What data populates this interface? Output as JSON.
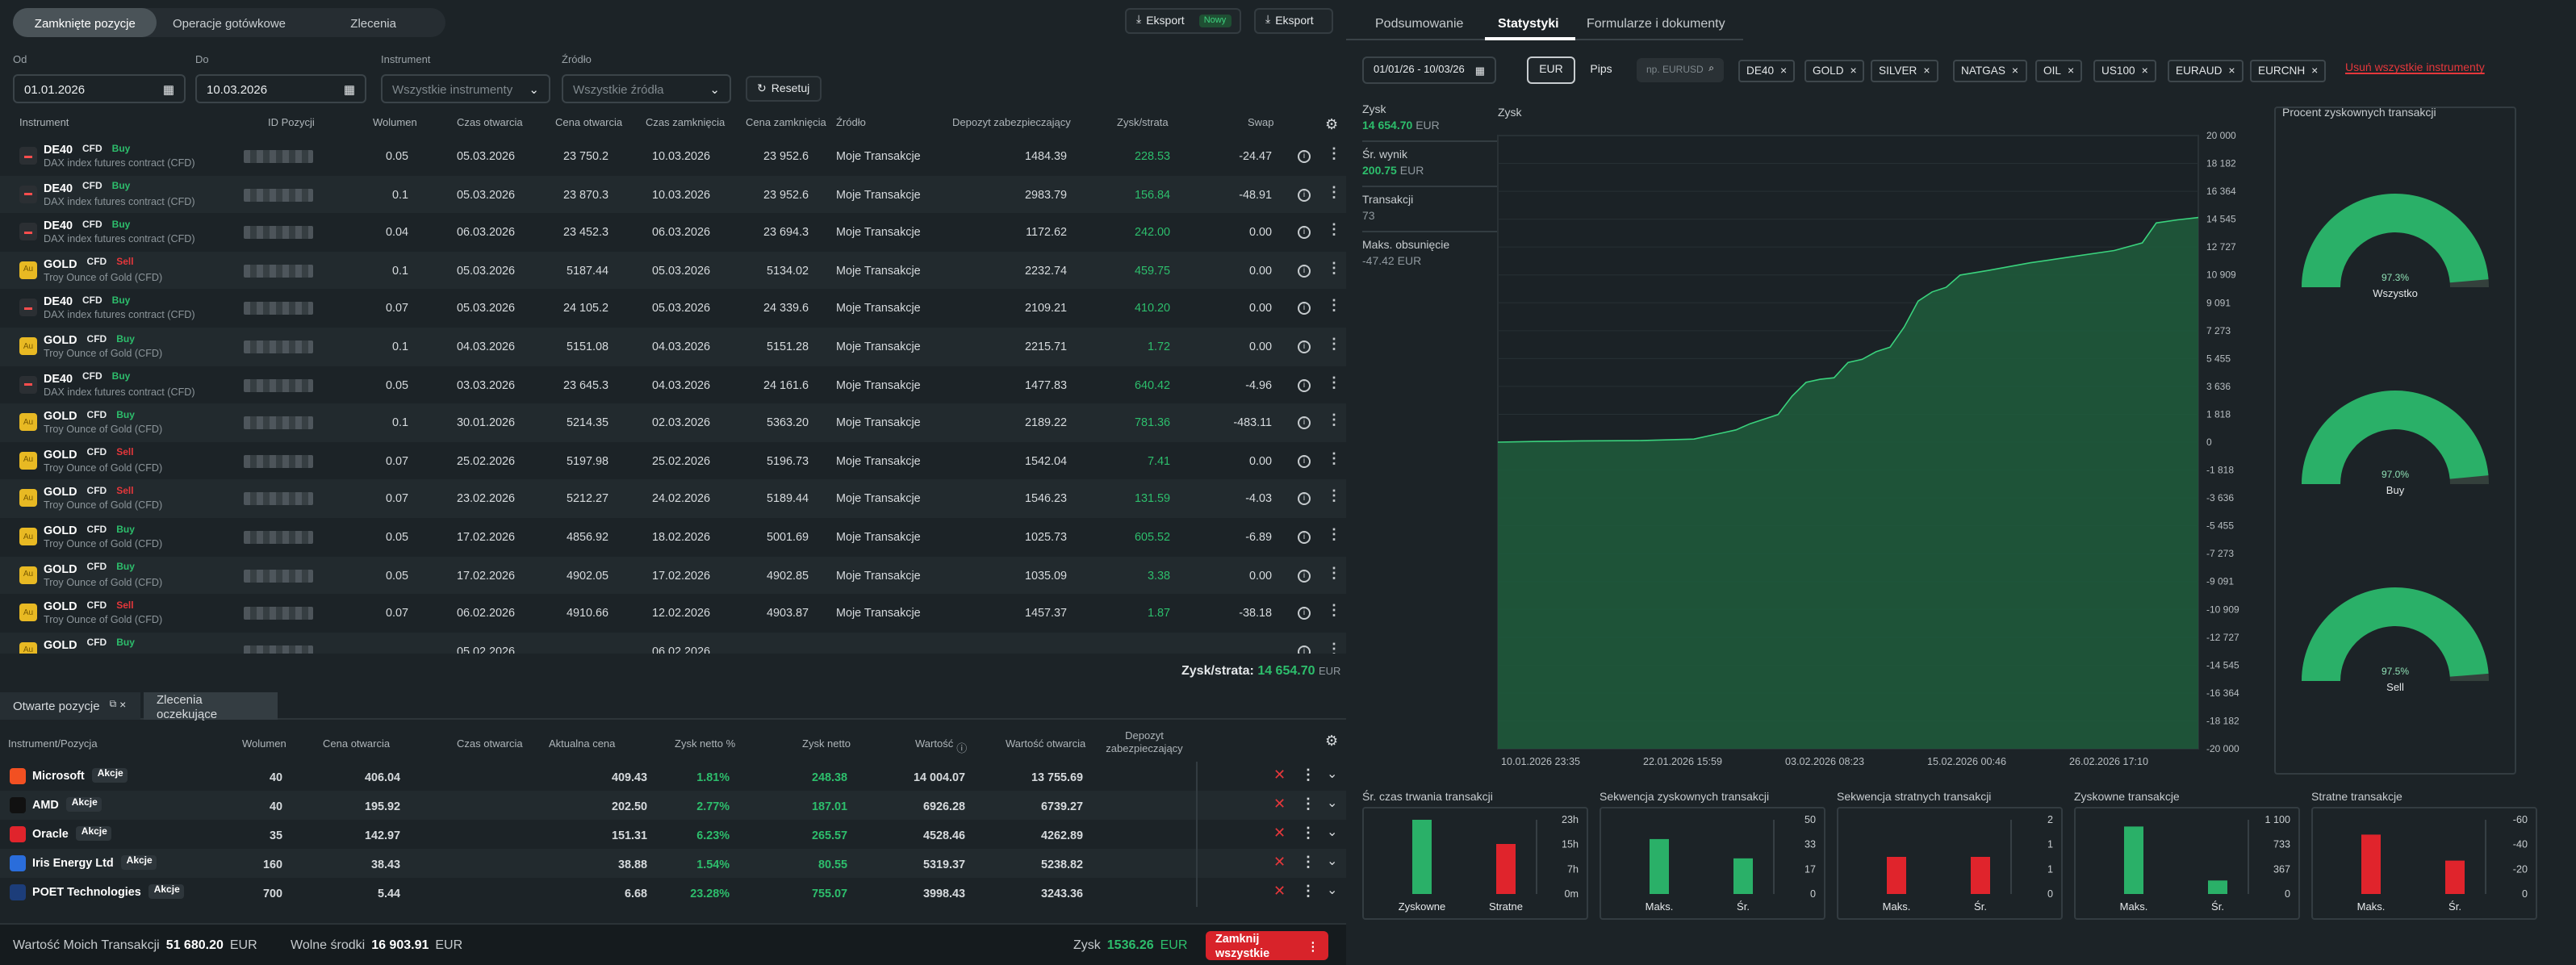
{
  "top_tabs": [
    "Zamknięte pozycje",
    "Operacje gotówkowe",
    "Zlecenia"
  ],
  "eksport_label": "Eksport",
  "eksport_badge": "Nowy",
  "eksport2_label": "Eksport",
  "filters": {
    "od_label": "Od",
    "od_value": "01.01.2026",
    "do_label": "Do",
    "do_value": "10.03.2026",
    "instrument_label": "Instrument",
    "instrument_value": "Wszystkie instrumenty",
    "zrodlo_label": "Źródło",
    "zrodlo_value": "Wszystkie źródła",
    "reset_label": "Resetuj"
  },
  "columns": [
    "Instrument",
    "ID Pozycji",
    "Wolumen",
    "Czas otwarcia",
    "Cena otwarcia",
    "Czas zamknięcia",
    "Cena zamknięcia",
    "Źródło",
    "Depozyt zabezpieczający",
    "Zysk/strata",
    "Swap"
  ],
  "rows": [
    {
      "sym": "DE40",
      "cfd": "CFD",
      "side": "Buy",
      "desc": "DAX index futures contract (CFD)",
      "vol": "0.05",
      "open_t": "05.03.2026",
      "open_p": "23 750.2",
      "close_t": "10.03.2026",
      "close_p": "23 952.6",
      "src": "Moje Transakcje",
      "dep": "1484.39",
      "pl": "228.53",
      "swap": "-24.47"
    },
    {
      "sym": "DE40",
      "cfd": "CFD",
      "side": "Buy",
      "desc": "DAX index futures contract (CFD)",
      "vol": "0.1",
      "open_t": "05.03.2026",
      "open_p": "23 870.3",
      "close_t": "10.03.2026",
      "close_p": "23 952.6",
      "src": "Moje Transakcje",
      "dep": "2983.79",
      "pl": "156.84",
      "swap": "-48.91"
    },
    {
      "sym": "DE40",
      "cfd": "CFD",
      "side": "Buy",
      "desc": "DAX index futures contract (CFD)",
      "vol": "0.04",
      "open_t": "06.03.2026",
      "open_p": "23 452.3",
      "close_t": "06.03.2026",
      "close_p": "23 694.3",
      "src": "Moje Transakcje",
      "dep": "1172.62",
      "pl": "242.00",
      "swap": "0.00"
    },
    {
      "sym": "GOLD",
      "cfd": "CFD",
      "side": "Sell",
      "desc": "Troy Ounce of Gold (CFD)",
      "vol": "0.1",
      "open_t": "05.03.2026",
      "open_p": "5187.44",
      "close_t": "05.03.2026",
      "close_p": "5134.02",
      "src": "Moje Transakcje",
      "dep": "2232.74",
      "pl": "459.75",
      "swap": "0.00"
    },
    {
      "sym": "DE40",
      "cfd": "CFD",
      "side": "Buy",
      "desc": "DAX index futures contract (CFD)",
      "vol": "0.07",
      "open_t": "05.03.2026",
      "open_p": "24 105.2",
      "close_t": "05.03.2026",
      "close_p": "24 339.6",
      "src": "Moje Transakcje",
      "dep": "2109.21",
      "pl": "410.20",
      "swap": "0.00"
    },
    {
      "sym": "GOLD",
      "cfd": "CFD",
      "side": "Buy",
      "desc": "Troy Ounce of Gold (CFD)",
      "vol": "0.1",
      "open_t": "04.03.2026",
      "open_p": "5151.08",
      "close_t": "04.03.2026",
      "close_p": "5151.28",
      "src": "Moje Transakcje",
      "dep": "2215.71",
      "pl": "1.72",
      "swap": "0.00"
    },
    {
      "sym": "DE40",
      "cfd": "CFD",
      "side": "Buy",
      "desc": "DAX index futures contract (CFD)",
      "vol": "0.05",
      "open_t": "03.03.2026",
      "open_p": "23 645.3",
      "close_t": "04.03.2026",
      "close_p": "24 161.6",
      "src": "Moje Transakcje",
      "dep": "1477.83",
      "pl": "640.42",
      "swap": "-4.96"
    },
    {
      "sym": "GOLD",
      "cfd": "CFD",
      "side": "Buy",
      "desc": "Troy Ounce of Gold (CFD)",
      "vol": "0.1",
      "open_t": "30.01.2026",
      "open_p": "5214.35",
      "close_t": "02.03.2026",
      "close_p": "5363.20",
      "src": "Moje Transakcje",
      "dep": "2189.22",
      "pl": "781.36",
      "swap": "-483.11"
    },
    {
      "sym": "GOLD",
      "cfd": "CFD",
      "side": "Sell",
      "desc": "Troy Ounce of Gold (CFD)",
      "vol": "0.07",
      "open_t": "25.02.2026",
      "open_p": "5197.98",
      "close_t": "25.02.2026",
      "close_p": "5196.73",
      "src": "Moje Transakcje",
      "dep": "1542.04",
      "pl": "7.41",
      "swap": "0.00"
    },
    {
      "sym": "GOLD",
      "cfd": "CFD",
      "side": "Sell",
      "desc": "Troy Ounce of Gold (CFD)",
      "vol": "0.07",
      "open_t": "23.02.2026",
      "open_p": "5212.27",
      "close_t": "24.02.2026",
      "close_p": "5189.44",
      "src": "Moje Transakcje",
      "dep": "1546.23",
      "pl": "131.59",
      "swap": "-4.03"
    },
    {
      "sym": "GOLD",
      "cfd": "CFD",
      "side": "Buy",
      "desc": "Troy Ounce of Gold (CFD)",
      "vol": "0.05",
      "open_t": "17.02.2026",
      "open_p": "4856.92",
      "close_t": "18.02.2026",
      "close_p": "5001.69",
      "src": "Moje Transakcje",
      "dep": "1025.73",
      "pl": "605.52",
      "swap": "-6.89"
    },
    {
      "sym": "GOLD",
      "cfd": "CFD",
      "side": "Buy",
      "desc": "Troy Ounce of Gold (CFD)",
      "vol": "0.05",
      "open_t": "17.02.2026",
      "open_p": "4902.05",
      "close_t": "17.02.2026",
      "close_p": "4902.85",
      "src": "Moje Transakcje",
      "dep": "1035.09",
      "pl": "3.38",
      "swap": "0.00"
    },
    {
      "sym": "GOLD",
      "cfd": "CFD",
      "side": "Sell",
      "desc": "Troy Ounce of Gold (CFD)",
      "vol": "0.07",
      "open_t": "06.02.2026",
      "open_p": "4910.66",
      "close_t": "12.02.2026",
      "close_p": "4903.87",
      "src": "Moje Transakcje",
      "dep": "1457.37",
      "pl": "1.87",
      "swap": "-38.18"
    },
    {
      "sym": "GOLD",
      "cfd": "CFD",
      "side": "Buy",
      "desc": "",
      "vol": "",
      "open_t": "05.02.2026",
      "open_p": "",
      "close_t": "06.02.2026",
      "close_p": "",
      "src": "",
      "dep": "",
      "pl": "",
      "swap": ""
    }
  ],
  "summary_label": "Zysk/strata:",
  "summary_value": "14 654.70",
  "summary_cur": "EUR",
  "bottom_tabs": [
    "Otwarte pozycje",
    "Zlecenia oczekujące"
  ],
  "open_columns": [
    "Instrument/Pozycja",
    "Wolumen",
    "Cena otwarcia",
    "Czas otwarcia",
    "Aktualna cena",
    "Zysk netto %",
    "Zysk netto",
    "Wartość",
    "Wartość otwarcia",
    "Depozyt zabezpieczający"
  ],
  "open_rows": [
    {
      "name": "Microsoft",
      "tag": "Akcje",
      "vol": "40",
      "open_p": "406.04",
      "cur": "409.43",
      "pct": "1.81%",
      "net": "248.38",
      "val": "14 004.07",
      "oval": "13 755.69"
    },
    {
      "name": "AMD",
      "tag": "Akcje",
      "vol": "40",
      "open_p": "195.92",
      "cur": "202.50",
      "pct": "2.77%",
      "net": "187.01",
      "val": "6926.28",
      "oval": "6739.27"
    },
    {
      "name": "Oracle",
      "tag": "Akcje",
      "vol": "35",
      "open_p": "142.97",
      "cur": "151.31",
      "pct": "6.23%",
      "net": "265.57",
      "val": "4528.46",
      "oval": "4262.89"
    },
    {
      "name": "Iris Energy Ltd",
      "tag": "Akcje",
      "vol": "160",
      "open_p": "38.43",
      "cur": "38.88",
      "pct": "1.54%",
      "net": "80.55",
      "val": "5319.37",
      "oval": "5238.82"
    },
    {
      "name": "POET Technologies",
      "tag": "Akcje",
      "vol": "700",
      "open_p": "5.44",
      "cur": "6.68",
      "pct": "23.28%",
      "net": "755.07",
      "val": "3998.43",
      "oval": "3243.36"
    }
  ],
  "footer": {
    "wartosc_label": "Wartość Moich Transakcji",
    "wartosc_value": "51 680.20",
    "wartosc_cur": "EUR",
    "wolne_label": "Wolne środki",
    "wolne_value": "16 903.91",
    "wolne_cur": "EUR",
    "zysk_label": "Zysk",
    "zysk_value": "1536.26",
    "zysk_cur": "EUR",
    "close_all": "Zamknij wszystkie"
  },
  "right_tabs": [
    "Podsumowanie",
    "Statystyki",
    "Formularze i dokumenty"
  ],
  "date_range": "01/01/26 - 10/03/26",
  "unit_options": [
    "EUR",
    "Pips"
  ],
  "search_placeholder": "np. EURUSD",
  "chips": [
    "DE40",
    "GOLD",
    "SILVER",
    "NATGAS",
    "OIL",
    "US100",
    "EURAUD",
    "EURCNH"
  ],
  "remove_all": "Usuń wszystkie instrumenty",
  "stats": {
    "zysk_label": "Zysk",
    "zysk_value": "14 654.70",
    "zysk_cur": "EUR",
    "sr_label": "Śr. wynik",
    "sr_value": "200.75",
    "sr_cur": "EUR",
    "trans_label": "Transakcji",
    "trans_value": "73",
    "dd_label": "Maks. obsunięcie",
    "dd_value": "-47.42",
    "dd_cur": "EUR"
  },
  "chart_data": [
    {
      "type": "area",
      "title": "Zysk",
      "x_labels": [
        "10.01.2026 23:35",
        "22.01.2026 15:59",
        "03.02.2026 08:23",
        "15.02.2026 00:46",
        "26.02.2026 17:10"
      ],
      "y_ticks": [
        "20 000",
        "18 182",
        "16 364",
        "14 545",
        "12 727",
        "10 909",
        "9 091",
        "7 273",
        "5 455",
        "3 636",
        "1 818",
        "0",
        "-1 818",
        "-3 636",
        "-5 455",
        "-7 273",
        "-9 091",
        "-10 909",
        "-12 727",
        "-14 545",
        "-16 364",
        "-18 182",
        "-20 000"
      ],
      "ylim": [
        -20000,
        20000
      ],
      "points": [
        [
          0,
          0
        ],
        [
          0.06,
          50
        ],
        [
          0.12,
          80
        ],
        [
          0.2,
          100
        ],
        [
          0.28,
          200
        ],
        [
          0.3,
          400
        ],
        [
          0.32,
          600
        ],
        [
          0.34,
          800
        ],
        [
          0.36,
          1200
        ],
        [
          0.38,
          1500
        ],
        [
          0.4,
          1800
        ],
        [
          0.42,
          3000
        ],
        [
          0.44,
          3900
        ],
        [
          0.46,
          4100
        ],
        [
          0.48,
          4200
        ],
        [
          0.5,
          5200
        ],
        [
          0.52,
          5400
        ],
        [
          0.54,
          5900
        ],
        [
          0.56,
          6200
        ],
        [
          0.58,
          7500
        ],
        [
          0.6,
          9200
        ],
        [
          0.62,
          9800
        ],
        [
          0.64,
          10100
        ],
        [
          0.66,
          10900
        ],
        [
          0.7,
          11200
        ],
        [
          0.76,
          11700
        ],
        [
          0.82,
          12100
        ],
        [
          0.88,
          12500
        ],
        [
          0.92,
          13000
        ],
        [
          0.94,
          14300
        ],
        [
          0.97,
          14500
        ],
        [
          1,
          14654.7
        ]
      ]
    },
    {
      "type": "gauge",
      "title": "Procent zyskownych transakcji",
      "gauges": [
        {
          "label": "Wszystko",
          "value": 97.3,
          "text": "97.3%"
        },
        {
          "label": "Buy",
          "value": 97.0,
          "text": "97.0%"
        },
        {
          "label": "Sell",
          "value": 97.5,
          "text": "97.5%"
        }
      ]
    },
    {
      "type": "bar",
      "title": "Śr. czas trwania transakcji",
      "categories": [
        "Zyskowne",
        "Stratne"
      ],
      "values": [
        23,
        15.5
      ],
      "ylim": [
        0,
        23
      ],
      "y_ticks": [
        "23h",
        "15h",
        "7h",
        "0m"
      ],
      "colors": [
        "#2ab068",
        "#e0242c"
      ]
    },
    {
      "type": "bar",
      "title": "Sekwencja zyskownych transakcji",
      "categories": [
        "Maks.",
        "Śr."
      ],
      "values": [
        37,
        24
      ],
      "ylim": [
        0,
        50
      ],
      "y_ticks": [
        "50",
        "33",
        "17",
        "0"
      ],
      "colors": [
        "#2ab068",
        "#2ab068"
      ]
    },
    {
      "type": "bar",
      "title": "Sekwencja stratnych transakcji",
      "categories": [
        "Maks.",
        "Śr."
      ],
      "values": [
        1,
        1
      ],
      "ylim": [
        0,
        2
      ],
      "y_ticks": [
        "2",
        "1",
        "1",
        "0"
      ],
      "colors": [
        "#e0242c",
        "#e0242c"
      ]
    },
    {
      "type": "bar",
      "title": "Zyskowne transakcje",
      "categories": [
        "Maks.",
        "Śr."
      ],
      "values": [
        1000,
        200
      ],
      "ylim": [
        0,
        1100
      ],
      "y_ticks": [
        "1 100",
        "733",
        "367",
        "0"
      ],
      "colors": [
        "#2ab068",
        "#2ab068"
      ]
    },
    {
      "type": "bar",
      "title": "Stratne transakcje",
      "categories": [
        "Maks.",
        "Śr."
      ],
      "values": [
        -48,
        -27
      ],
      "ylim": [
        0,
        -60
      ],
      "y_ticks": [
        "-60",
        "-40",
        "-20",
        "0"
      ],
      "colors": [
        "#e0242c",
        "#e0242c"
      ]
    }
  ],
  "colors": {
    "green": "#2dbe6c",
    "red": "#e5373b",
    "accent_red": "#d8232a",
    "area": "#1f5c3c"
  }
}
